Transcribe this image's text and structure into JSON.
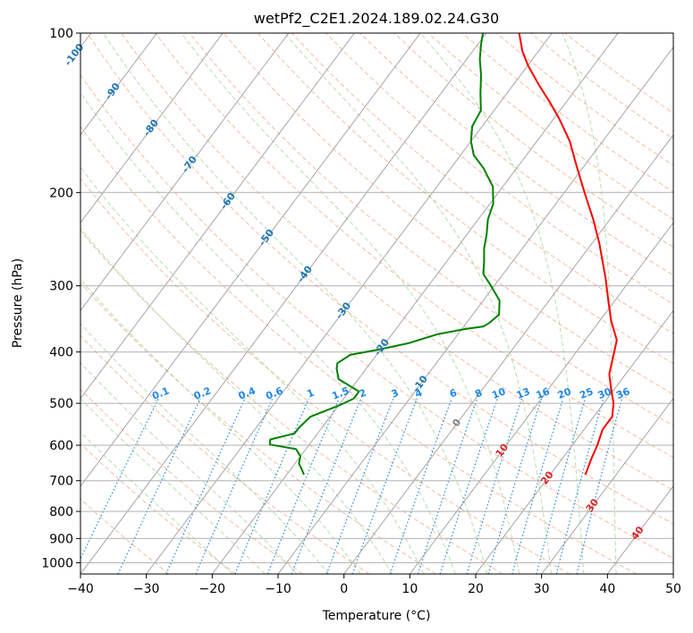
{
  "chart_data": {
    "type": "skew-t",
    "title": "wetPf2_C2E1.2024.189.02.24.G30",
    "xlabel": "Temperature (°C)",
    "ylabel": "Pressure (hPa)",
    "xlim": [
      -40,
      50
    ],
    "ylim": [
      1050,
      100
    ],
    "y_scale": "log",
    "grid": true,
    "x_ticks": [
      "−40",
      "−30",
      "−20",
      "−10",
      "0",
      "10",
      "20",
      "30",
      "40",
      "50"
    ],
    "y_ticks": [
      "100",
      "200",
      "300",
      "400",
      "500",
      "600",
      "700",
      "800",
      "900",
      "1000"
    ],
    "y_tick_values": [
      100,
      200,
      300,
      400,
      500,
      600,
      700,
      800,
      900,
      1000
    ],
    "colors": {
      "temperature": "#ff0000",
      "dewpoint": "#008000",
      "isotherm_label_negative": "#1f77b4",
      "isotherm_label_positive": "#d62728",
      "isotherm_label_zero": "#7f7f7f",
      "dry_adiabat": "#f4a582",
      "moist_adiabat": "#a6d49b",
      "mixing_ratio": "#1e88e5"
    },
    "isotherm_labels": [
      {
        "text": "-100",
        "value": -100
      },
      {
        "text": "-90",
        "value": -90
      },
      {
        "text": "-80",
        "value": -80
      },
      {
        "text": "-70",
        "value": -70
      },
      {
        "text": "-60",
        "value": -60
      },
      {
        "text": "-50",
        "value": -50
      },
      {
        "text": "-40",
        "value": -40
      },
      {
        "text": "-30",
        "value": -30
      },
      {
        "text": "-20",
        "value": -20
      },
      {
        "text": "-10",
        "value": -10
      },
      {
        "text": "0",
        "value": 0
      },
      {
        "text": "10",
        "value": 10
      },
      {
        "text": "20",
        "value": 20
      },
      {
        "text": "30",
        "value": 30
      },
      {
        "text": "40",
        "value": 40
      }
    ],
    "mixing_ratio_labels": [
      "0.1",
      "0.2",
      "0.4",
      "0.6",
      "1",
      "1.5",
      "2",
      "3",
      "4",
      "6",
      "8",
      "10",
      "13",
      "16",
      "20",
      "25",
      "30",
      "36"
    ],
    "mixing_ratio_values": [
      0.1,
      0.2,
      0.4,
      0.6,
      1,
      1.5,
      2,
      3,
      4,
      6,
      8,
      10,
      13,
      16,
      20,
      25,
      30,
      36
    ],
    "series": [
      {
        "key": "temperature",
        "points": [
          {
            "p": 680,
            "t": 25.3
          },
          {
            "p": 640,
            "t": 24.5
          },
          {
            "p": 600,
            "t": 23.8
          },
          {
            "p": 560,
            "t": 22.8
          },
          {
            "p": 530,
            "t": 22.8
          },
          {
            "p": 500,
            "t": 21.5
          },
          {
            "p": 470,
            "t": 19.5
          },
          {
            "p": 440,
            "t": 17.5
          },
          {
            "p": 410,
            "t": 16.2
          },
          {
            "p": 380,
            "t": 14.8
          },
          {
            "p": 350,
            "t": 11.8
          },
          {
            "p": 320,
            "t": 9.0
          },
          {
            "p": 290,
            "t": 6.0
          },
          {
            "p": 250,
            "t": 1.2
          },
          {
            "p": 225,
            "t": -2.5
          },
          {
            "p": 205,
            "t": -6.0
          },
          {
            "p": 190,
            "t": -8.8
          },
          {
            "p": 175,
            "t": -11.8
          },
          {
            "p": 160,
            "t": -15.0
          },
          {
            "p": 145,
            "t": -19.2
          },
          {
            "p": 135,
            "t": -22.5
          },
          {
            "p": 125,
            "t": -26.2
          },
          {
            "p": 115,
            "t": -30.0
          },
          {
            "p": 108,
            "t": -32.5
          },
          {
            "p": 100,
            "t": -35.0
          }
        ]
      },
      {
        "key": "dewpoint",
        "points": [
          {
            "p": 680,
            "t": -17.5
          },
          {
            "p": 665,
            "t": -18.4
          },
          {
            "p": 650,
            "t": -19.4
          },
          {
            "p": 630,
            "t": -20.0
          },
          {
            "p": 610,
            "t": -21.5
          },
          {
            "p": 598,
            "t": -26.0
          },
          {
            "p": 585,
            "t": -26.5
          },
          {
            "p": 570,
            "t": -23.5
          },
          {
            "p": 555,
            "t": -23.5
          },
          {
            "p": 530,
            "t": -23.0
          },
          {
            "p": 505,
            "t": -20.0
          },
          {
            "p": 490,
            "t": -18.5
          },
          {
            "p": 475,
            "t": -18.5
          },
          {
            "p": 450,
            "t": -23.0
          },
          {
            "p": 430,
            "t": -24.5
          },
          {
            "p": 420,
            "t": -25.0
          },
          {
            "p": 405,
            "t": -24.0
          },
          {
            "p": 395,
            "t": -20.0
          },
          {
            "p": 385,
            "t": -16.5
          },
          {
            "p": 370,
            "t": -13.0
          },
          {
            "p": 362,
            "t": -9.5
          },
          {
            "p": 358,
            "t": -7.0
          },
          {
            "p": 352,
            "t": -6.5
          },
          {
            "p": 340,
            "t": -6.0
          },
          {
            "p": 320,
            "t": -7.5
          },
          {
            "p": 300,
            "t": -10.5
          },
          {
            "p": 285,
            "t": -13.0
          },
          {
            "p": 270,
            "t": -14.3
          },
          {
            "p": 255,
            "t": -15.8
          },
          {
            "p": 240,
            "t": -17.0
          },
          {
            "p": 225,
            "t": -18.5
          },
          {
            "p": 210,
            "t": -19.5
          },
          {
            "p": 195,
            "t": -21.5
          },
          {
            "p": 180,
            "t": -25.0
          },
          {
            "p": 170,
            "t": -28.0
          },
          {
            "p": 160,
            "t": -30.0
          },
          {
            "p": 150,
            "t": -31.5
          },
          {
            "p": 140,
            "t": -32.0
          },
          {
            "p": 130,
            "t": -34.0
          },
          {
            "p": 120,
            "t": -36.0
          },
          {
            "p": 112,
            "t": -38.0
          },
          {
            "p": 105,
            "t": -39.5
          },
          {
            "p": 100,
            "t": -40.5
          }
        ]
      }
    ]
  }
}
